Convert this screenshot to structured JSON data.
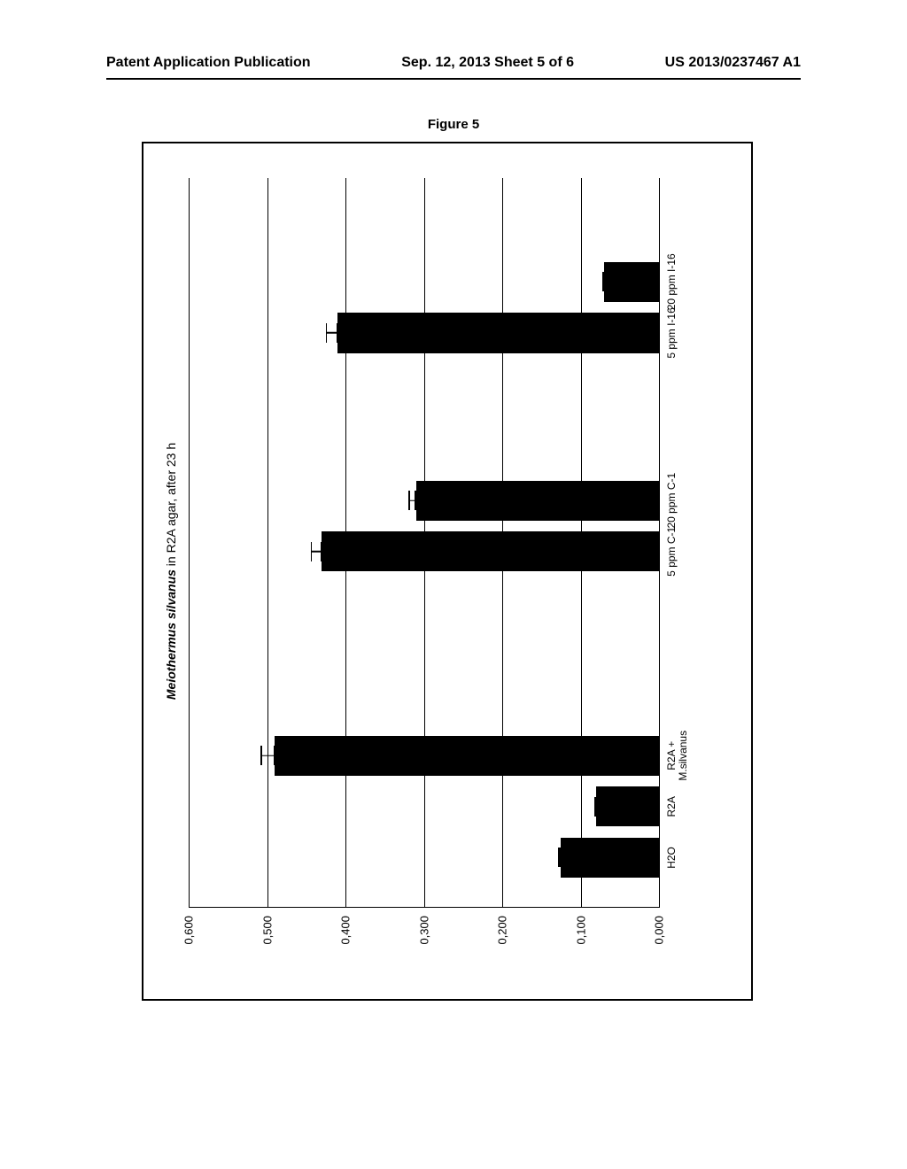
{
  "page": {
    "header_left": "Patent Application Publication",
    "header_center": "Sep. 12, 2013   Sheet 5 of 6",
    "header_right": "US 2013/0237467 A1",
    "figure_label": "Figure 5"
  },
  "chart": {
    "type": "bar",
    "title_italic": "Meiothermus silvanus",
    "title_rest": " in R2A agar, after 23 h",
    "title_fontsize": 14,
    "background_color": "#ffffff",
    "grid_color": "#000000",
    "bar_color": "#000000",
    "axis_color": "#000000",
    "y_max": 0.6,
    "y_tick_step": 0.1,
    "y_tick_labels": [
      "0,000",
      "0,100",
      "0,200",
      "0,300",
      "0,400",
      "0,500",
      "0,600"
    ],
    "bar_width_pct": 5.5,
    "error_cap_width_pct": 2.0,
    "data": [
      {
        "label": "H2O",
        "x_pct": 4,
        "value": 0.125,
        "err": 0.01
      },
      {
        "label": "R2A",
        "x_pct": 11,
        "value": 0.08,
        "err": 0.008
      },
      {
        "label": "R2A +\nM.silvanus",
        "x_pct": 18,
        "value": 0.49,
        "err": 0.02
      },
      {
        "label": "5 ppm C-1",
        "x_pct": 46,
        "value": 0.43,
        "err": 0.018
      },
      {
        "label": "20 ppm C-1",
        "x_pct": 53,
        "value": 0.31,
        "err": 0.015
      },
      {
        "label": "5 ppm I-16",
        "x_pct": 76,
        "value": 0.41,
        "err": 0.02
      },
      {
        "label": "20 ppm I-16",
        "x_pct": 83,
        "value": 0.07,
        "err": 0.008
      }
    ]
  }
}
